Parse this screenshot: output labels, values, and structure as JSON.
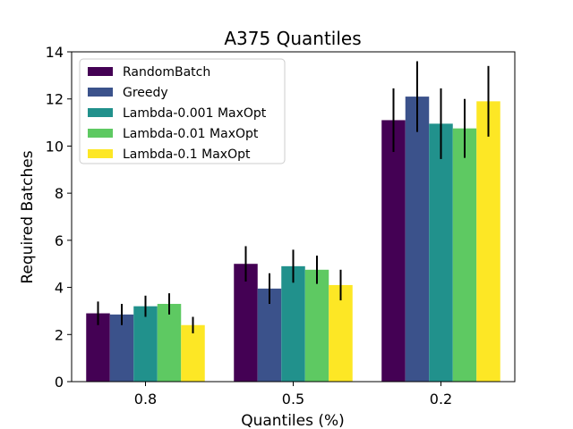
{
  "chart_data": {
    "type": "bar",
    "title": "A375 Quantiles",
    "xlabel": "Quantiles (%)",
    "ylabel": "Required Batches",
    "categories": [
      "0.8",
      "0.5",
      "0.2"
    ],
    "ylim": [
      0,
      14
    ],
    "yticks": [
      0,
      2,
      4,
      6,
      8,
      10,
      12,
      14
    ],
    "legend_position": "top-left",
    "grid": false,
    "series": [
      {
        "name": "RandomBatch",
        "color": "#440154",
        "values": [
          2.9,
          5.0,
          11.1
        ],
        "errors": [
          0.5,
          0.75,
          1.35
        ]
      },
      {
        "name": "Greedy",
        "color": "#3b528b",
        "values": [
          2.85,
          3.95,
          12.1
        ],
        "errors": [
          0.45,
          0.65,
          1.5
        ]
      },
      {
        "name": "Lambda-0.001 MaxOpt",
        "color": "#21918c",
        "values": [
          3.2,
          4.9,
          10.95
        ],
        "errors": [
          0.45,
          0.7,
          1.5
        ]
      },
      {
        "name": "Lambda-0.01 MaxOpt",
        "color": "#5ec962",
        "values": [
          3.3,
          4.75,
          10.75
        ],
        "errors": [
          0.45,
          0.6,
          1.25
        ]
      },
      {
        "name": "Lambda-0.1 MaxOpt",
        "color": "#fde725",
        "values": [
          2.4,
          4.1,
          11.9
        ],
        "errors": [
          0.35,
          0.65,
          1.5
        ]
      }
    ]
  }
}
